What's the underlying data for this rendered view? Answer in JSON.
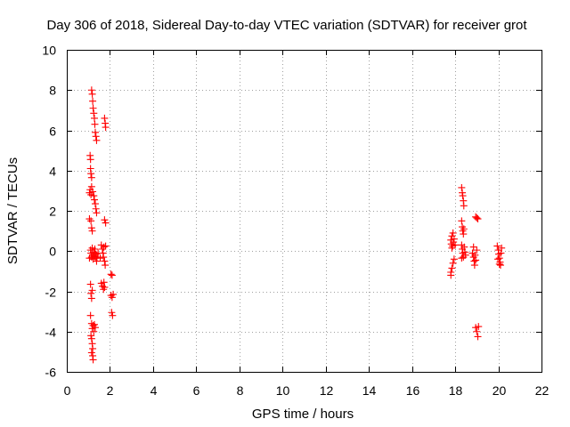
{
  "chart_data": {
    "type": "scatter",
    "title": "Day 306 of 2018, Sidereal Day-to-day VTEC variation (SDTVAR) for receiver grot",
    "xlabel": "GPS time / hours",
    "ylabel": "SDTVAR / TECUs",
    "xlim": [
      0,
      22
    ],
    "ylim": [
      -6,
      10
    ],
    "x_ticks": [
      "0",
      "2",
      "4",
      "6",
      "8",
      "10",
      "12",
      "14",
      "16",
      "18",
      "20",
      "22"
    ],
    "y_ticks": [
      "-6",
      "-4",
      "-2",
      "0",
      "2",
      "4",
      "6",
      "8",
      "10"
    ],
    "grid": true,
    "marker": "plus",
    "color": "#ff0000",
    "series": [
      {
        "name": "SDTVAR",
        "points": [
          [
            1.08,
            4.75
          ],
          [
            1.1,
            4.55
          ],
          [
            1.1,
            4.1
          ],
          [
            1.12,
            3.85
          ],
          [
            1.15,
            3.65
          ],
          [
            1.05,
            2.9
          ],
          [
            1.08,
            3.05
          ],
          [
            1.12,
            2.8
          ],
          [
            1.15,
            3.2
          ],
          [
            1.2,
            2.95
          ],
          [
            1.25,
            2.75
          ],
          [
            1.28,
            2.55
          ],
          [
            1.32,
            2.35
          ],
          [
            1.35,
            2.1
          ],
          [
            1.38,
            1.9
          ],
          [
            1.05,
            1.6
          ],
          [
            1.12,
            1.5
          ],
          [
            1.15,
            1.15
          ],
          [
            1.18,
            1.0
          ],
          [
            1.1,
            0.05
          ],
          [
            1.12,
            -0.1
          ],
          [
            1.15,
            -0.3
          ],
          [
            1.18,
            0.15
          ],
          [
            1.2,
            -0.2
          ],
          [
            1.22,
            -0.4
          ],
          [
            1.25,
            -0.05
          ],
          [
            1.28,
            -0.25
          ],
          [
            1.3,
            0.1
          ],
          [
            1.32,
            -0.35
          ],
          [
            1.35,
            -0.15
          ],
          [
            1.38,
            -0.5
          ],
          [
            1.4,
            -0.3
          ],
          [
            1.45,
            -0.1
          ],
          [
            1.05,
            -0.35
          ],
          [
            1.1,
            -1.65
          ],
          [
            1.12,
            -2.1
          ],
          [
            1.15,
            -2.35
          ],
          [
            1.18,
            -1.95
          ],
          [
            1.1,
            -3.2
          ],
          [
            1.15,
            -3.6
          ],
          [
            1.18,
            -3.85
          ],
          [
            1.22,
            -3.7
          ],
          [
            1.25,
            -4.0
          ],
          [
            1.28,
            -3.65
          ],
          [
            1.32,
            -3.8
          ],
          [
            1.12,
            -4.2
          ],
          [
            1.15,
            -4.35
          ],
          [
            1.18,
            -4.6
          ],
          [
            1.2,
            -4.85
          ],
          [
            1.15,
            -5.05
          ],
          [
            1.2,
            -5.2
          ],
          [
            1.22,
            -5.4
          ],
          [
            1.15,
            8.0
          ],
          [
            1.18,
            7.8
          ],
          [
            1.2,
            7.45
          ],
          [
            1.22,
            7.1
          ],
          [
            1.25,
            6.85
          ],
          [
            1.28,
            6.6
          ],
          [
            1.3,
            6.3
          ],
          [
            1.32,
            5.9
          ],
          [
            1.35,
            5.7
          ],
          [
            1.38,
            5.5
          ],
          [
            1.75,
            6.6
          ],
          [
            1.78,
            6.35
          ],
          [
            1.8,
            6.15
          ],
          [
            1.75,
            1.55
          ],
          [
            1.8,
            1.4
          ],
          [
            1.6,
            0.3
          ],
          [
            1.65,
            0.1
          ],
          [
            1.68,
            -0.1
          ],
          [
            1.7,
            -0.3
          ],
          [
            1.72,
            0.2
          ],
          [
            1.75,
            -0.5
          ],
          [
            1.78,
            -0.7
          ],
          [
            1.8,
            0.25
          ],
          [
            1.55,
            -0.35
          ],
          [
            1.6,
            -1.6
          ],
          [
            1.65,
            -1.75
          ],
          [
            1.7,
            -1.9
          ],
          [
            1.72,
            -1.55
          ],
          [
            1.75,
            -1.8
          ],
          [
            2.05,
            -1.15
          ],
          [
            2.1,
            -1.2
          ],
          [
            2.05,
            -2.2
          ],
          [
            2.1,
            -2.3
          ],
          [
            2.15,
            -2.15
          ],
          [
            2.08,
            -3.05
          ],
          [
            2.12,
            -3.2
          ],
          [
            17.8,
            0.55
          ],
          [
            17.82,
            0.35
          ],
          [
            17.85,
            0.75
          ],
          [
            17.88,
            0.25
          ],
          [
            17.9,
            0.9
          ],
          [
            17.92,
            0.45
          ],
          [
            17.95,
            0.6
          ],
          [
            18.0,
            0.3
          ],
          [
            17.85,
            0.15
          ],
          [
            17.8,
            -1.05
          ],
          [
            17.85,
            -0.85
          ],
          [
            17.9,
            -0.6
          ],
          [
            17.95,
            -0.4
          ],
          [
            17.8,
            -1.2
          ],
          [
            18.3,
            3.15
          ],
          [
            18.33,
            2.9
          ],
          [
            18.35,
            2.75
          ],
          [
            18.38,
            2.5
          ],
          [
            18.4,
            2.25
          ],
          [
            18.3,
            1.5
          ],
          [
            18.33,
            1.2
          ],
          [
            18.35,
            1.0
          ],
          [
            18.38,
            0.85
          ],
          [
            18.4,
            1.1
          ],
          [
            18.3,
            0.3
          ],
          [
            18.33,
            0.1
          ],
          [
            18.35,
            -0.1
          ],
          [
            18.38,
            -0.3
          ],
          [
            18.42,
            0.2
          ],
          [
            18.45,
            -0.05
          ],
          [
            18.48,
            -0.2
          ],
          [
            18.3,
            -0.35
          ],
          [
            18.8,
            -0.1
          ],
          [
            18.85,
            -0.3
          ],
          [
            18.88,
            -0.5
          ],
          [
            18.9,
            -0.7
          ],
          [
            18.92,
            -0.2
          ],
          [
            18.95,
            -0.45
          ],
          [
            19.0,
            0.05
          ],
          [
            18.85,
            0.2
          ],
          [
            18.95,
            1.7
          ],
          [
            19.0,
            1.65
          ],
          [
            19.05,
            1.6
          ],
          [
            18.95,
            -3.8
          ],
          [
            19.0,
            -4.0
          ],
          [
            19.05,
            -4.25
          ],
          [
            19.08,
            -3.75
          ],
          [
            19.95,
            0.25
          ],
          [
            20.0,
            0.05
          ],
          [
            20.02,
            -0.15
          ],
          [
            20.05,
            -0.35
          ],
          [
            20.08,
            -0.55
          ],
          [
            20.1,
            -0.7
          ],
          [
            20.12,
            -0.1
          ],
          [
            20.15,
            0.15
          ],
          [
            19.98,
            -0.4
          ],
          [
            20.05,
            -0.65
          ]
        ]
      }
    ]
  }
}
